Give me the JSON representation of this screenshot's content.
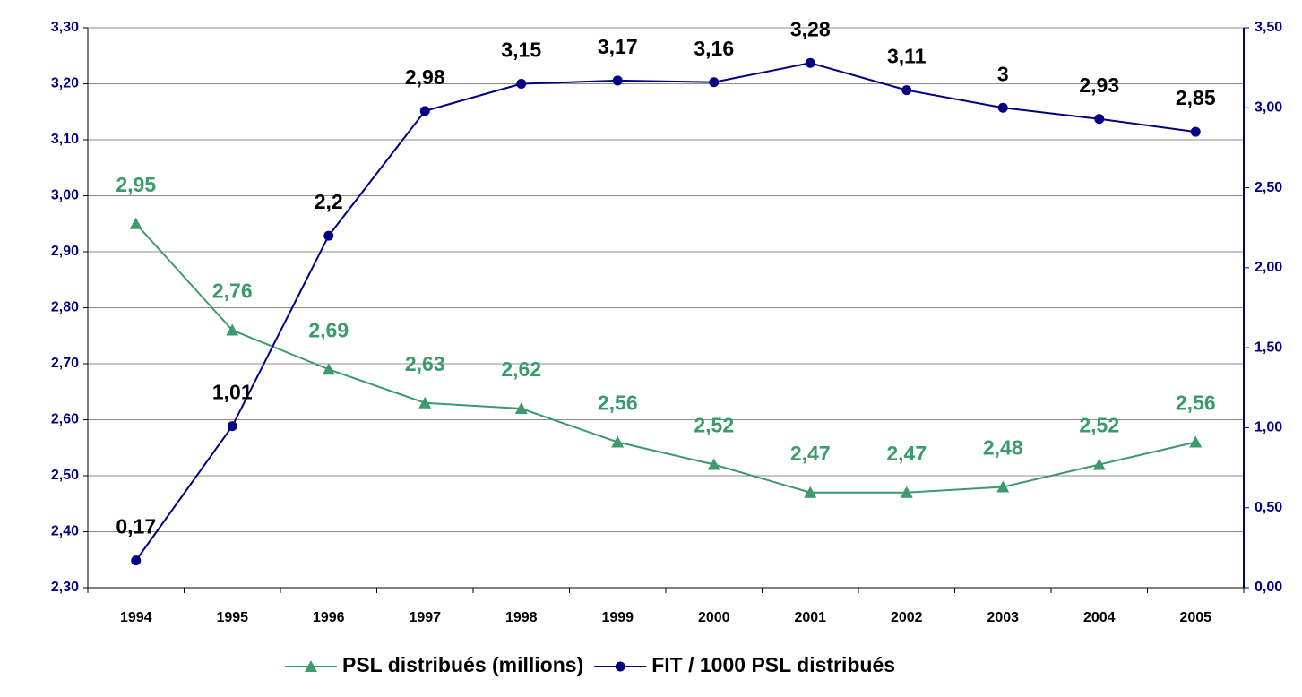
{
  "chart_data": {
    "type": "line",
    "categories": [
      "1994",
      "1995",
      "1996",
      "1997",
      "1998",
      "1999",
      "2000",
      "2001",
      "2002",
      "2003",
      "2004",
      "2005"
    ],
    "series": [
      {
        "name": "PSL distribués (millions)",
        "color": "#3c9a6c",
        "marker": "triangle",
        "axis": "y",
        "values": [
          2.95,
          2.76,
          2.69,
          2.63,
          2.62,
          2.56,
          2.52,
          2.47,
          2.47,
          2.48,
          2.52,
          2.56
        ],
        "value_labels": [
          "2,95",
          "2,76",
          "2,69",
          "2,63",
          "2,62",
          "2,56",
          "2,52",
          "2,47",
          "2,47",
          "2,48",
          "2,52",
          "2,56"
        ]
      },
      {
        "name": "FIT / 1000 PSL distribués",
        "color": "#000080",
        "marker": "circle",
        "axis": "y2",
        "values": [
          0.17,
          1.01,
          2.2,
          2.98,
          3.15,
          3.17,
          3.16,
          3.28,
          3.11,
          3,
          2.93,
          2.85
        ],
        "value_labels": [
          "0,17",
          "1,01",
          "2,2",
          "2,98",
          "3,15",
          "3,17",
          "3,16",
          "3,28",
          "3,11",
          "3",
          "2,93",
          "2,85"
        ]
      }
    ],
    "ylim": [
      2.3,
      3.3
    ],
    "yticks": [
      {
        "value": 2.3,
        "label": "2,30"
      },
      {
        "value": 2.4,
        "label": "2,40"
      },
      {
        "value": 2.5,
        "label": "2,50"
      },
      {
        "value": 2.6,
        "label": "2,60"
      },
      {
        "value": 2.7,
        "label": "2,70"
      },
      {
        "value": 2.8,
        "label": "2,80"
      },
      {
        "value": 2.9,
        "label": "2,90"
      },
      {
        "value": 3.0,
        "label": "3,00"
      },
      {
        "value": 3.1,
        "label": "3,10"
      },
      {
        "value": 3.2,
        "label": "3,20"
      },
      {
        "value": 3.3,
        "label": "3,30"
      }
    ],
    "y2lim": [
      0,
      3.5
    ],
    "y2ticks": [
      {
        "value": 0,
        "label": "0,00"
      },
      {
        "value": 0.5,
        "label": "0,50"
      },
      {
        "value": 1,
        "label": "1,00"
      },
      {
        "value": 1.5,
        "label": "1,50"
      },
      {
        "value": 2,
        "label": "2,00"
      },
      {
        "value": 2.5,
        "label": "2,50"
      },
      {
        "value": 3,
        "label": "3,00"
      },
      {
        "value": 3.5,
        "label": "3,50"
      }
    ],
    "grid": true,
    "legend": "bottom"
  }
}
